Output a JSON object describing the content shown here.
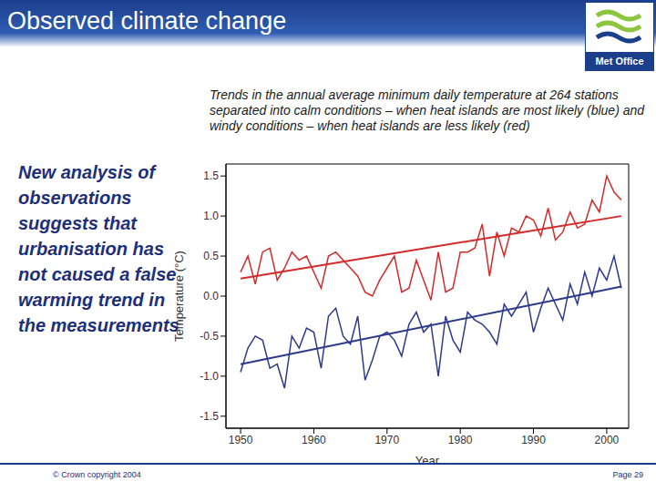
{
  "header": {
    "title": "Observed climate change",
    "logo": "Met Office"
  },
  "side_text": "New analysis of observations suggests that urbanisation has not caused a false warming trend in the measurements",
  "footer": {
    "left": "© Crown copyright 2004",
    "right": "Page 29"
  },
  "chart_data": {
    "type": "line",
    "title": "Trends in the annual average minimum daily temperature at 264 stations separated into calm conditions – when heat islands are most likely (blue) and windy conditions – when heat islands are less likely (red)",
    "x_label": "Year",
    "y_label": "Temperature (°C)",
    "x": [
      1950,
      1951,
      1952,
      1953,
      1954,
      1955,
      1956,
      1957,
      1958,
      1959,
      1960,
      1961,
      1962,
      1963,
      1964,
      1965,
      1966,
      1967,
      1968,
      1969,
      1970,
      1971,
      1972,
      1973,
      1974,
      1975,
      1976,
      1977,
      1978,
      1979,
      1980,
      1981,
      1982,
      1983,
      1984,
      1985,
      1986,
      1987,
      1988,
      1989,
      1990,
      1991,
      1992,
      1993,
      1994,
      1995,
      1996,
      1997,
      1998,
      1999,
      2000,
      2001,
      2002
    ],
    "series": [
      {
        "color": "#d42a2a",
        "values": [
          0.3,
          0.5,
          0.15,
          0.55,
          0.6,
          0.2,
          0.35,
          0.55,
          0.45,
          0.5,
          0.3,
          0.1,
          0.5,
          0.55,
          0.45,
          0.35,
          0.25,
          0.05,
          0.0,
          0.2,
          0.35,
          0.5,
          0.05,
          0.1,
          0.45,
          0.2,
          -0.05,
          0.55,
          0.05,
          0.1,
          0.55,
          0.55,
          0.6,
          0.9,
          0.25,
          0.8,
          0.5,
          0.85,
          0.8,
          1.0,
          0.95,
          0.75,
          1.1,
          0.7,
          0.8,
          1.05,
          0.85,
          0.9,
          1.2,
          1.05,
          1.5,
          1.3,
          1.2
        ]
      },
      {
        "color": "#2d3a8c",
        "values": [
          -0.95,
          -0.65,
          -0.5,
          -0.55,
          -0.9,
          -0.85,
          -1.15,
          -0.5,
          -0.65,
          -0.4,
          -0.45,
          -0.9,
          -0.25,
          -0.15,
          -0.5,
          -0.6,
          -0.25,
          -1.05,
          -0.8,
          -0.5,
          -0.45,
          -0.55,
          -0.75,
          -0.35,
          -0.2,
          -0.45,
          -0.35,
          -1.0,
          -0.25,
          -0.55,
          -0.7,
          -0.2,
          -0.3,
          -0.35,
          -0.45,
          -0.6,
          -0.1,
          -0.25,
          -0.1,
          0.05,
          -0.45,
          -0.15,
          0.1,
          -0.1,
          -0.3,
          0.15,
          -0.1,
          0.3,
          0.0,
          0.35,
          0.2,
          0.5,
          0.1
        ]
      }
    ],
    "trend_lines": [
      {
        "color": "#d42a2a",
        "x": [
          1950,
          2002
        ],
        "values": [
          0.22,
          1.0
        ]
      },
      {
        "color": "#2d3a8c",
        "x": [
          1950,
          2002
        ],
        "values": [
          -0.85,
          0.12
        ]
      }
    ],
    "xlim": [
      1948,
      2003
    ],
    "xticks": [
      1950,
      1960,
      1970,
      1980,
      1990,
      2000
    ],
    "ylim": [
      -1.65,
      1.65
    ],
    "yticks": [
      -1.5,
      {
        "value": -1,
        "label": "-1.0"
      },
      -0.5,
      {
        "value": 0,
        "label": "0.0"
      },
      0.5,
      {
        "value": 1,
        "label": "1.0"
      },
      1.5
    ],
    "grid": false
  }
}
